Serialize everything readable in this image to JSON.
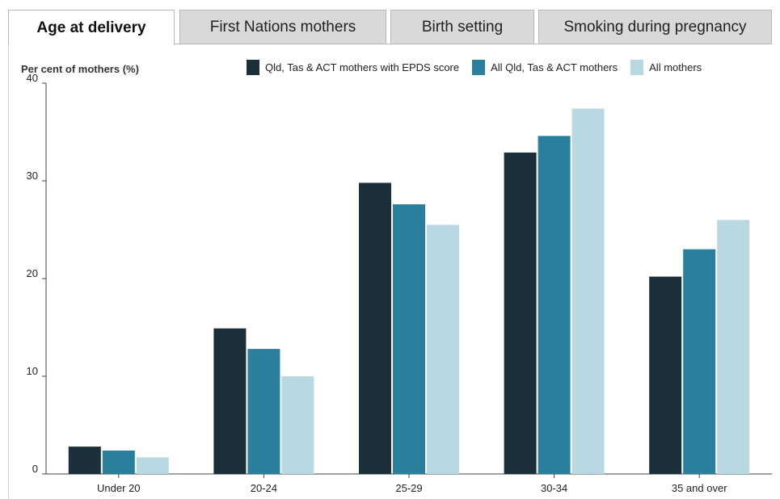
{
  "tabs": [
    {
      "label": "Age at delivery",
      "active": true
    },
    {
      "label": "First Nations mothers",
      "active": false
    },
    {
      "label": "Birth setting",
      "active": false
    },
    {
      "label": "Smoking during pregnancy",
      "active": false
    }
  ],
  "chart_data": {
    "type": "bar",
    "ylabel": "Per cent of mothers (%)",
    "xlabel": "",
    "ylim": [
      0,
      40
    ],
    "yticks": [
      0,
      10,
      20,
      30,
      40
    ],
    "categories": [
      "Under 20",
      "20-24",
      "25-29",
      "30-34",
      "35 and over"
    ],
    "series": [
      {
        "name": "Qld, Tas & ACT mothers with EPDS score",
        "color": "#1b2f3a",
        "values": [
          2.8,
          14.9,
          29.8,
          32.9,
          20.2
        ]
      },
      {
        "name": "All Qld, Tas & ACT mothers",
        "color": "#2a7f9c",
        "values": [
          2.4,
          12.8,
          27.6,
          34.6,
          23.0
        ]
      },
      {
        "name": "All mothers",
        "color": "#b8d8e2",
        "values": [
          1.7,
          10.0,
          25.5,
          37.4,
          26.0
        ]
      }
    ],
    "grid": false,
    "legend_position": "top-right"
  }
}
